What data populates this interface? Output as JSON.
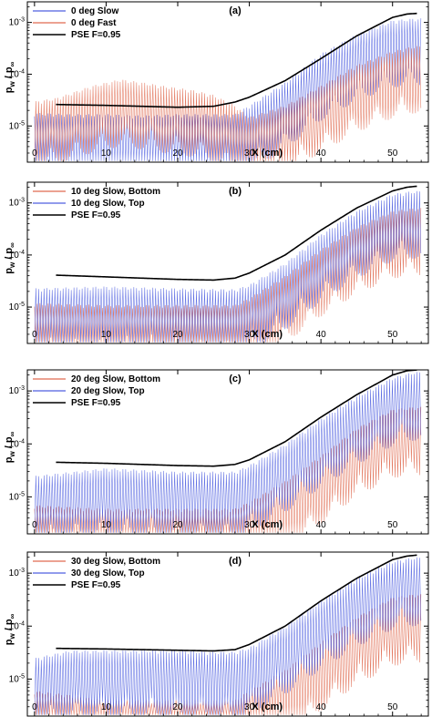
{
  "figure": {
    "colors": {
      "slow_blue": "#4f5fe0",
      "red": "#e06a50",
      "pse": "#000000"
    }
  },
  "chart_data": [
    {
      "type": "line",
      "panel_label": "(a)",
      "xlabel": "X (cm)",
      "ylabel_main": "p",
      "ylabel_sub": "w",
      "ylabel_sep": " / p",
      "ylabel_sub2": "∞",
      "xlim": [
        -1,
        55
      ],
      "ylim": [
        2e-06,
        0.0025
      ],
      "yscale": "log",
      "xticks": [
        0,
        10,
        20,
        30,
        40,
        50
      ],
      "yticks": [
        {
          "value": 1e-05,
          "base": "10",
          "exp": "-5"
        },
        {
          "value": 0.0001,
          "base": "10",
          "exp": "-4"
        },
        {
          "value": 0.001,
          "base": "10",
          "exp": "-3"
        }
      ],
      "legend_position": "top-left",
      "series": [
        {
          "name": "0 deg Slow",
          "color": "#4f5fe0",
          "style": "oscillating",
          "envelope_x": [
            0,
            5,
            10,
            15,
            20,
            25,
            28,
            30,
            35,
            40,
            45,
            50,
            53
          ],
          "envelope_y": [
            1.8e-05,
            1.7e-05,
            1.7e-05,
            1.6e-05,
            1.7e-05,
            1.7e-05,
            1.7e-05,
            2.5e-05,
            7e-05,
            0.00025,
            0.0006,
            0.0011,
            0.0012
          ]
        },
        {
          "name": "0 deg Fast",
          "color": "#e06a50",
          "style": "oscillating",
          "envelope_x": [
            0,
            3,
            8,
            12,
            15,
            18,
            22,
            25,
            28,
            30,
            35,
            40,
            45,
            50,
            53
          ],
          "envelope_y": [
            3e-05,
            3.5e-05,
            6e-05,
            8e-05,
            7e-05,
            6e-05,
            5e-05,
            4e-05,
            2.5e-05,
            1.5e-05,
            2.5e-05,
            6e-05,
            0.00015,
            0.00028,
            0.00035
          ]
        },
        {
          "name": "PSE F=0.95",
          "color": "#000000",
          "style": "line",
          "x": [
            3,
            10,
            20,
            25,
            28,
            30,
            35,
            40,
            45,
            50,
            52,
            53.5
          ],
          "y": [
            2.6e-05,
            2.5e-05,
            2.3e-05,
            2.4e-05,
            2.9e-05,
            3.6e-05,
            7.5e-05,
            0.0002,
            0.00055,
            0.00125,
            0.00145,
            0.0015
          ]
        }
      ]
    },
    {
      "type": "line",
      "panel_label": "(b)",
      "xlabel": "X (cm)",
      "ylabel_main": "p",
      "ylabel_sub": "w",
      "ylabel_sep": " / p",
      "ylabel_sub2": "∞",
      "xlim": [
        -1,
        55
      ],
      "ylim": [
        2e-06,
        0.0025
      ],
      "yscale": "log",
      "xticks": [
        0,
        10,
        20,
        30,
        40,
        50
      ],
      "yticks": [
        {
          "value": 1e-05,
          "base": "10",
          "exp": "-5"
        },
        {
          "value": 0.0001,
          "base": "10",
          "exp": "-4"
        },
        {
          "value": 0.001,
          "base": "10",
          "exp": "-3"
        }
      ],
      "legend_position": "top-left",
      "series": [
        {
          "name": "10 deg Slow, Bottom",
          "color": "#e06a50",
          "style": "oscillating",
          "envelope_x": [
            0,
            10,
            20,
            28,
            30,
            35,
            40,
            45,
            50,
            53
          ],
          "envelope_y": [
            1.2e-05,
            1.1e-05,
            1.1e-05,
            1.1e-05,
            1.5e-05,
            4e-05,
            0.00013,
            0.00035,
            0.0007,
            0.0008
          ]
        },
        {
          "name": "10 deg Slow, Top",
          "color": "#4f5fe0",
          "style": "oscillating",
          "envelope_x": [
            0,
            10,
            20,
            28,
            30,
            35,
            40,
            45,
            50,
            53
          ],
          "envelope_y": [
            2.3e-05,
            2.5e-05,
            2.3e-05,
            2.2e-05,
            2.7e-05,
            7e-05,
            0.00025,
            0.0007,
            0.0015,
            0.0017
          ]
        },
        {
          "name": "PSE F=0.95",
          "color": "#000000",
          "style": "line",
          "x": [
            3,
            10,
            20,
            25,
            28,
            30,
            35,
            40,
            45,
            50,
            52,
            53.5
          ],
          "y": [
            4.1e-05,
            3.8e-05,
            3.4e-05,
            3.3e-05,
            3.6e-05,
            4.5e-05,
            0.0001,
            0.0003,
            0.0008,
            0.0017,
            0.002,
            0.0021
          ]
        }
      ]
    },
    {
      "type": "line",
      "panel_label": "(c)",
      "xlabel": "X (cm)",
      "ylabel_main": "p",
      "ylabel_sub": "w",
      "ylabel_sep": " / p",
      "ylabel_sub2": "∞",
      "xlim": [
        -1,
        55
      ],
      "ylim": [
        2e-06,
        0.0025
      ],
      "yscale": "log",
      "xticks": [
        0,
        10,
        20,
        30,
        40,
        50
      ],
      "yticks": [
        {
          "value": 1e-05,
          "base": "10",
          "exp": "-5"
        },
        {
          "value": 0.0001,
          "base": "10",
          "exp": "-4"
        },
        {
          "value": 0.001,
          "base": "10",
          "exp": "-3"
        }
      ],
      "legend_position": "top-left",
      "series": [
        {
          "name": "20 deg Slow, Bottom",
          "color": "#e06a50",
          "style": "oscillating",
          "envelope_x": [
            0,
            10,
            20,
            28,
            30,
            35,
            40,
            45,
            50,
            53
          ],
          "envelope_y": [
            7e-06,
            6e-06,
            6e-06,
            6e-06,
            8e-06,
            2e-05,
            6e-05,
            0.0002,
            0.00045,
            0.0005
          ]
        },
        {
          "name": "20 deg Slow, Top",
          "color": "#4f5fe0",
          "style": "oscillating",
          "envelope_x": [
            0,
            10,
            20,
            28,
            30,
            35,
            40,
            45,
            50,
            53
          ],
          "envelope_y": [
            2.5e-05,
            3.5e-05,
            3e-05,
            3e-05,
            4e-05,
            0.0001,
            0.0003,
            0.0008,
            0.0018,
            0.0023
          ]
        },
        {
          "name": "PSE F=0.95",
          "color": "#000000",
          "style": "line",
          "x": [
            3,
            10,
            20,
            25,
            28,
            30,
            35,
            40,
            45,
            50,
            52,
            53.5
          ],
          "y": [
            4.5e-05,
            4.3e-05,
            3.9e-05,
            3.8e-05,
            4.1e-05,
            5e-05,
            0.00011,
            0.00032,
            0.00085,
            0.002,
            0.0024,
            0.0025
          ]
        }
      ]
    },
    {
      "type": "line",
      "panel_label": "(d)",
      "xlabel": "X (cm)",
      "ylabel_main": "p",
      "ylabel_sub": "w",
      "ylabel_sep": " / p",
      "ylabel_sub2": "∞",
      "xlim": [
        -1,
        55
      ],
      "ylim": [
        2e-06,
        0.0025
      ],
      "yscale": "log",
      "xticks": [
        0,
        10,
        20,
        30,
        40,
        50
      ],
      "yticks": [
        {
          "value": 1e-05,
          "base": "10",
          "exp": "-5"
        },
        {
          "value": 0.0001,
          "base": "10",
          "exp": "-4"
        },
        {
          "value": 0.001,
          "base": "10",
          "exp": "-3"
        }
      ],
      "legend_position": "top-left",
      "series": [
        {
          "name": "30 deg Slow, Bottom",
          "color": "#e06a50",
          "style": "oscillating",
          "envelope_x": [
            0,
            5,
            10,
            20,
            28,
            30,
            35,
            40,
            45,
            50,
            53
          ],
          "envelope_y": [
            6e-06,
            5e-06,
            4e-06,
            4e-06,
            4e-06,
            6e-06,
            1.5e-05,
            5e-05,
            0.00015,
            0.00035,
            0.0004
          ]
        },
        {
          "name": "30 deg Slow, Top",
          "color": "#4f5fe0",
          "style": "oscillating",
          "envelope_x": [
            0,
            5,
            10,
            15,
            20,
            25,
            28,
            30,
            35,
            40,
            45,
            50,
            53
          ],
          "envelope_y": [
            2.5e-05,
            3.5e-05,
            3.5e-05,
            3.5e-05,
            3.5e-05,
            3.3e-05,
            3.3e-05,
            4e-05,
            0.0001,
            0.0003,
            0.0008,
            0.0017,
            0.002
          ]
        },
        {
          "name": "PSE F=0.95",
          "color": "#000000",
          "style": "line",
          "x": [
            3,
            10,
            20,
            25,
            28,
            30,
            35,
            40,
            45,
            50,
            52,
            53.5
          ],
          "y": [
            3.8e-05,
            3.7e-05,
            3.5e-05,
            3.4e-05,
            3.6e-05,
            4.5e-05,
            0.0001,
            0.0003,
            0.0008,
            0.0018,
            0.0021,
            0.0022
          ]
        }
      ]
    }
  ]
}
